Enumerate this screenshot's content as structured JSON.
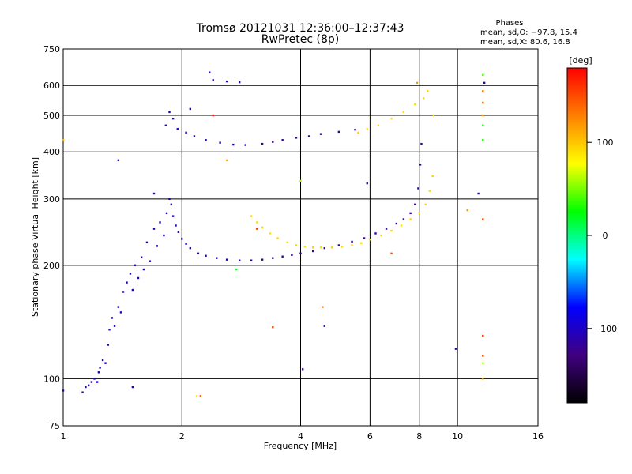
{
  "chart_data": {
    "type": "scatter",
    "title": "Tromsø 20121031 12:36:00–12:37:43",
    "subtitle": "RwPretec (8p)",
    "xlabel": "Frequency [MHz]",
    "ylabel": "Stationary phase Virtual Height [km]",
    "x_scale": "log",
    "y_scale": "log",
    "xlim": [
      1,
      16
    ],
    "ylim": [
      75,
      750
    ],
    "x_ticks": [
      "1",
      "2",
      "4",
      "6",
      "8",
      "10",
      "16"
    ],
    "x_tick_values": [
      1,
      2,
      4,
      6,
      8,
      10,
      16
    ],
    "y_ticks": [
      "75",
      "100",
      "200",
      "300",
      "400",
      "500",
      "600",
      "750"
    ],
    "y_tick_values": [
      75,
      100,
      200,
      300,
      400,
      500,
      600,
      750
    ],
    "grid": true,
    "stats": {
      "header": "Phases",
      "line_o": "mean, sd,O: −97.8, 15.4",
      "line_x": "mean, sd,X:  80.6, 16.8"
    },
    "colorbar": {
      "label": "[deg]",
      "range": [
        -180,
        180
      ],
      "ticks": [
        "100",
        "0",
        "−100"
      ],
      "tick_values": [
        100,
        0,
        -100
      ],
      "colors": [
        "#ff0000",
        "#ff8000",
        "#ffff00",
        "#00ff00",
        "#00ffff",
        "#0000ff",
        "#400080",
        "#000000"
      ]
    },
    "series": [
      {
        "values": [
          {
            "x": 1.0,
            "y": 93,
            "p": -110
          },
          {
            "x": 1.12,
            "y": 92,
            "p": -110
          },
          {
            "x": 1.14,
            "y": 95,
            "p": -105
          },
          {
            "x": 1.16,
            "y": 96,
            "p": -110
          },
          {
            "x": 1.18,
            "y": 98,
            "p": -105
          },
          {
            "x": 1.2,
            "y": 100,
            "p": -110
          },
          {
            "x": 1.22,
            "y": 98,
            "p": -100
          },
          {
            "x": 1.23,
            "y": 104,
            "p": -110
          },
          {
            "x": 1.24,
            "y": 107,
            "p": -105
          },
          {
            "x": 1.26,
            "y": 112,
            "p": -110
          },
          {
            "x": 1.28,
            "y": 110,
            "p": -100
          },
          {
            "x": 1.3,
            "y": 123,
            "p": -110
          },
          {
            "x": 1.31,
            "y": 135,
            "p": -105
          },
          {
            "x": 1.33,
            "y": 145,
            "p": -110
          },
          {
            "x": 1.35,
            "y": 138,
            "p": -100
          },
          {
            "x": 1.38,
            "y": 155,
            "p": -110
          },
          {
            "x": 1.4,
            "y": 150,
            "p": -105
          },
          {
            "x": 1.42,
            "y": 170,
            "p": -110
          },
          {
            "x": 1.45,
            "y": 180,
            "p": -100
          },
          {
            "x": 1.48,
            "y": 190,
            "p": -110
          },
          {
            "x": 1.5,
            "y": 172,
            "p": -105
          },
          {
            "x": 1.52,
            "y": 200,
            "p": -110
          },
          {
            "x": 1.55,
            "y": 185,
            "p": -100
          },
          {
            "x": 1.58,
            "y": 210,
            "p": -110
          },
          {
            "x": 1.6,
            "y": 195,
            "p": -105
          },
          {
            "x": 1.63,
            "y": 230,
            "p": -110
          },
          {
            "x": 1.66,
            "y": 205,
            "p": -100
          },
          {
            "x": 1.7,
            "y": 250,
            "p": -110
          },
          {
            "x": 1.73,
            "y": 225,
            "p": -105
          },
          {
            "x": 1.76,
            "y": 260,
            "p": -110
          },
          {
            "x": 1.8,
            "y": 240,
            "p": -100
          },
          {
            "x": 1.83,
            "y": 275,
            "p": -110
          },
          {
            "x": 1.86,
            "y": 300,
            "p": -105
          },
          {
            "x": 1.88,
            "y": 290,
            "p": -110
          },
          {
            "x": 1.9,
            "y": 270,
            "p": -100
          },
          {
            "x": 1.93,
            "y": 255,
            "p": -110
          },
          {
            "x": 1.96,
            "y": 245,
            "p": -105
          },
          {
            "x": 2.0,
            "y": 235,
            "p": -110
          },
          {
            "x": 2.05,
            "y": 228,
            "p": -100
          },
          {
            "x": 2.1,
            "y": 222,
            "p": -110
          },
          {
            "x": 2.2,
            "y": 215,
            "p": -105
          },
          {
            "x": 2.3,
            "y": 212,
            "p": -110
          },
          {
            "x": 2.45,
            "y": 209,
            "p": -100
          },
          {
            "x": 2.6,
            "y": 207,
            "p": -110
          },
          {
            "x": 2.8,
            "y": 206,
            "p": -105
          },
          {
            "x": 3.0,
            "y": 206,
            "p": -110
          },
          {
            "x": 3.2,
            "y": 207,
            "p": -115
          },
          {
            "x": 3.4,
            "y": 209,
            "p": -120
          },
          {
            "x": 3.6,
            "y": 211,
            "p": -115
          },
          {
            "x": 3.8,
            "y": 213,
            "p": -120
          },
          {
            "x": 4.0,
            "y": 215,
            "p": -115
          },
          {
            "x": 4.3,
            "y": 218,
            "p": -120
          },
          {
            "x": 4.6,
            "y": 222,
            "p": -115
          },
          {
            "x": 5.0,
            "y": 226,
            "p": -120
          },
          {
            "x": 5.4,
            "y": 231,
            "p": -115
          },
          {
            "x": 5.8,
            "y": 236,
            "p": -120
          },
          {
            "x": 6.2,
            "y": 243,
            "p": -115
          },
          {
            "x": 6.6,
            "y": 250,
            "p": -120
          },
          {
            "x": 7.0,
            "y": 258,
            "p": -115
          },
          {
            "x": 7.3,
            "y": 265,
            "p": -120
          },
          {
            "x": 7.6,
            "y": 275,
            "p": -115
          },
          {
            "x": 7.8,
            "y": 290,
            "p": -120
          },
          {
            "x": 7.95,
            "y": 320,
            "p": -115
          },
          {
            "x": 8.05,
            "y": 370,
            "p": -120
          },
          {
            "x": 8.1,
            "y": 420,
            "p": -115
          },
          {
            "x": 1.82,
            "y": 470,
            "p": -110
          },
          {
            "x": 1.86,
            "y": 510,
            "p": -105
          },
          {
            "x": 1.9,
            "y": 490,
            "p": -110
          },
          {
            "x": 1.95,
            "y": 460,
            "p": -100
          },
          {
            "x": 2.05,
            "y": 450,
            "p": -110
          },
          {
            "x": 2.15,
            "y": 440,
            "p": -105
          },
          {
            "x": 2.3,
            "y": 430,
            "p": -110
          },
          {
            "x": 2.5,
            "y": 423,
            "p": -100
          },
          {
            "x": 2.7,
            "y": 418,
            "p": -110
          },
          {
            "x": 2.9,
            "y": 417,
            "p": -105
          },
          {
            "x": 3.2,
            "y": 420,
            "p": -115
          },
          {
            "x": 3.4,
            "y": 425,
            "p": -120
          },
          {
            "x": 3.6,
            "y": 430,
            "p": -115
          },
          {
            "x": 3.9,
            "y": 436,
            "p": -120
          },
          {
            "x": 4.2,
            "y": 440,
            "p": -115
          },
          {
            "x": 4.5,
            "y": 446,
            "p": -120
          },
          {
            "x": 5.0,
            "y": 452,
            "p": -115
          },
          {
            "x": 5.5,
            "y": 458,
            "p": -110
          },
          {
            "x": 2.4,
            "y": 620,
            "p": -110
          },
          {
            "x": 2.6,
            "y": 615,
            "p": -105
          },
          {
            "x": 2.8,
            "y": 612,
            "p": -100
          },
          {
            "x": 2.35,
            "y": 650,
            "p": -110
          },
          {
            "x": 2.1,
            "y": 520,
            "p": -105
          },
          {
            "x": 1.7,
            "y": 310,
            "p": -110
          },
          {
            "x": 1.38,
            "y": 380,
            "p": -110
          },
          {
            "x": 1.5,
            "y": 95,
            "p": -105
          },
          {
            "x": 4.05,
            "y": 106,
            "p": -120
          },
          {
            "x": 4.6,
            "y": 138,
            "p": -110
          },
          {
            "x": 9.9,
            "y": 120,
            "p": -110
          },
          {
            "x": 11.7,
            "y": 610,
            "p": -110
          },
          {
            "x": 11.3,
            "y": 310,
            "p": -110
          },
          {
            "x": 5.9,
            "y": 330,
            "p": -110
          }
        ]
      },
      {
        "values": [
          {
            "x": 3.0,
            "y": 270,
            "p": 95
          },
          {
            "x": 3.1,
            "y": 260,
            "p": 90
          },
          {
            "x": 3.2,
            "y": 252,
            "p": 95
          },
          {
            "x": 3.35,
            "y": 243,
            "p": 90
          },
          {
            "x": 3.5,
            "y": 236,
            "p": 95
          },
          {
            "x": 3.7,
            "y": 230,
            "p": 90
          },
          {
            "x": 3.9,
            "y": 226,
            "p": 95
          },
          {
            "x": 4.1,
            "y": 224,
            "p": 90
          },
          {
            "x": 4.3,
            "y": 223,
            "p": 95
          },
          {
            "x": 4.5,
            "y": 223,
            "p": 90
          },
          {
            "x": 4.8,
            "y": 223,
            "p": 95
          },
          {
            "x": 5.1,
            "y": 224,
            "p": 90
          },
          {
            "x": 5.4,
            "y": 226,
            "p": 95
          },
          {
            "x": 5.7,
            "y": 229,
            "p": 90
          },
          {
            "x": 6.0,
            "y": 234,
            "p": 95
          },
          {
            "x": 6.4,
            "y": 240,
            "p": 90
          },
          {
            "x": 6.8,
            "y": 247,
            "p": 95
          },
          {
            "x": 7.2,
            "y": 255,
            "p": 90
          },
          {
            "x": 7.6,
            "y": 265,
            "p": 95
          },
          {
            "x": 8.0,
            "y": 275,
            "p": 90
          },
          {
            "x": 8.3,
            "y": 290,
            "p": 95
          },
          {
            "x": 8.5,
            "y": 315,
            "p": 90
          },
          {
            "x": 8.65,
            "y": 345,
            "p": 95
          },
          {
            "x": 5.6,
            "y": 450,
            "p": 95
          },
          {
            "x": 5.9,
            "y": 460,
            "p": 90
          },
          {
            "x": 6.3,
            "y": 470,
            "p": 95
          },
          {
            "x": 6.8,
            "y": 490,
            "p": 90
          },
          {
            "x": 7.3,
            "y": 510,
            "p": 95
          },
          {
            "x": 7.8,
            "y": 535,
            "p": 90
          },
          {
            "x": 8.2,
            "y": 555,
            "p": 95
          },
          {
            "x": 8.7,
            "y": 500,
            "p": 90
          },
          {
            "x": 8.4,
            "y": 580,
            "p": 95
          },
          {
            "x": 7.9,
            "y": 610,
            "p": 120
          },
          {
            "x": 1.0,
            "y": 430,
            "p": 110
          },
          {
            "x": 2.6,
            "y": 380,
            "p": 110
          },
          {
            "x": 2.75,
            "y": 195,
            "p": 20
          },
          {
            "x": 11.6,
            "y": 430,
            "p": 30
          },
          {
            "x": 11.6,
            "y": 470,
            "p": 20
          },
          {
            "x": 11.6,
            "y": 580,
            "p": 130
          },
          {
            "x": 11.6,
            "y": 540,
            "p": 140
          },
          {
            "x": 11.6,
            "y": 500,
            "p": 110
          },
          {
            "x": 11.6,
            "y": 640,
            "p": 40
          },
          {
            "x": 11.6,
            "y": 265,
            "p": 150
          },
          {
            "x": 11.6,
            "y": 130,
            "p": 160
          },
          {
            "x": 11.6,
            "y": 115,
            "p": 150
          },
          {
            "x": 11.6,
            "y": 100,
            "p": 110
          },
          {
            "x": 11.6,
            "y": 110,
            "p": 60
          },
          {
            "x": 10.6,
            "y": 280,
            "p": 120
          },
          {
            "x": 4.0,
            "y": 335,
            "p": 60
          },
          {
            "x": 4.55,
            "y": 155,
            "p": 130
          },
          {
            "x": 3.4,
            "y": 137,
            "p": 150
          },
          {
            "x": 2.23,
            "y": 90,
            "p": 140
          },
          {
            "x": 2.18,
            "y": 90,
            "p": 80
          },
          {
            "x": 6.8,
            "y": 215,
            "p": 150
          },
          {
            "x": 3.1,
            "y": 250,
            "p": 160
          },
          {
            "x": 2.4,
            "y": 500,
            "p": 170
          }
        ]
      }
    ]
  }
}
